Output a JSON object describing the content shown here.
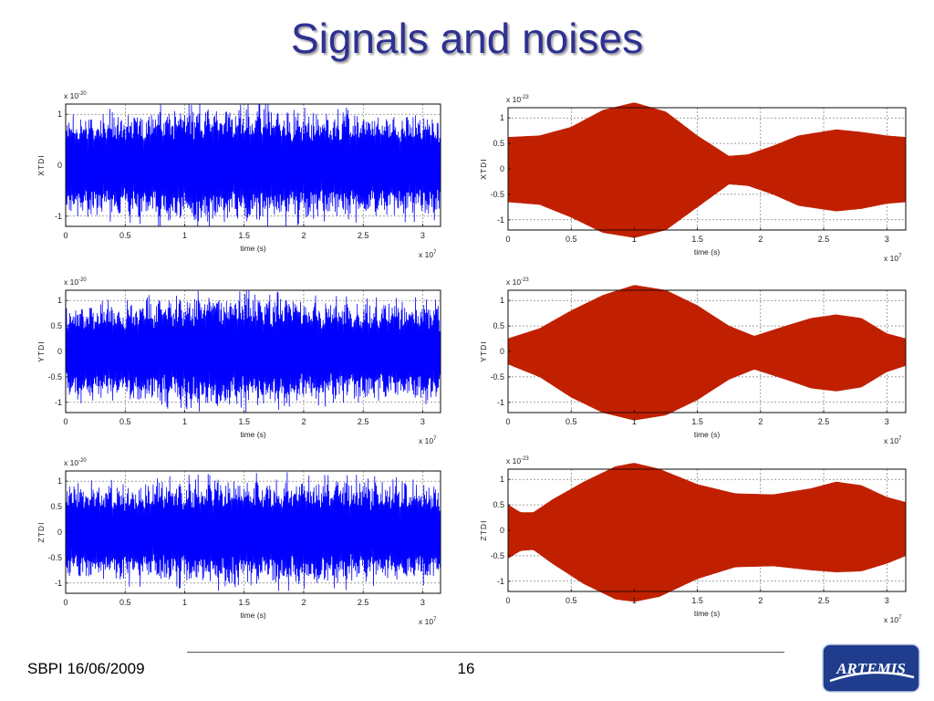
{
  "slide": {
    "title": "Signals and noises",
    "footer_left": "SBPI 16/06/2009",
    "page_number": "16"
  },
  "logo": {
    "text": "ARTEMIS",
    "icon": "artemis-logo",
    "color": "#1f3d8c"
  },
  "colors": {
    "title": "#2e3192",
    "noise": "#0000ff",
    "signal": "#c02000"
  },
  "chart_data": [
    {
      "type": "line",
      "position": "top-left",
      "color": "#0000ff",
      "ylabel": "XTDI",
      "xlabel": "time (s)",
      "y_exponent": "x 10-20",
      "x_exponent": "x 107",
      "xlim": [
        0,
        3.15
      ],
      "ylim": [
        -1.2,
        1.2
      ],
      "xticks": [
        0,
        0.5,
        1,
        1.5,
        2,
        2.5,
        3
      ],
      "xtick_labels": [
        "0",
        "0.5",
        "1",
        "1.5",
        "2",
        "2.5",
        "3"
      ],
      "yticks": [
        1,
        0,
        -1
      ],
      "ytick_labels": [
        "1",
        "0",
        "-1"
      ],
      "envelope": {
        "x": [
          0,
          0.5,
          1,
          1.5,
          2,
          2.5,
          3,
          3.15
        ],
        "upper": [
          0.95,
          1.0,
          1.15,
          1.15,
          1.05,
          1.0,
          1.0,
          0.95
        ],
        "lower": [
          -0.95,
          -1.0,
          -1.15,
          -1.15,
          -1.05,
          -1.0,
          -1.0,
          -0.95
        ]
      }
    },
    {
      "type": "area",
      "position": "top-right",
      "color": "#c02000",
      "ylabel": "XTDI",
      "xlabel": "time (s)",
      "y_exponent": "x 10-23",
      "x_exponent": "x 107",
      "xlim": [
        0,
        3.15
      ],
      "ylim": [
        -1.2,
        1.2
      ],
      "xticks": [
        0,
        0.5,
        1,
        1.5,
        2,
        2.5,
        3
      ],
      "xtick_labels": [
        "0",
        "0.5",
        "1",
        "1.5",
        "2",
        "2.5",
        "3"
      ],
      "yticks": [
        1,
        0.5,
        0,
        -0.5,
        -1
      ],
      "ytick_labels": [
        "1",
        "0.5",
        "0",
        "-0.5",
        "-1"
      ],
      "envelope": {
        "x": [
          0,
          0.25,
          0.5,
          0.75,
          1.0,
          1.25,
          1.5,
          1.75,
          1.9,
          2.1,
          2.3,
          2.6,
          2.8,
          3.0,
          3.15
        ],
        "upper": [
          0.62,
          0.65,
          0.82,
          1.15,
          1.3,
          1.12,
          0.65,
          0.25,
          0.28,
          0.45,
          0.65,
          0.77,
          0.72,
          0.65,
          0.62
        ],
        "lower": [
          -0.65,
          -0.7,
          -0.95,
          -1.25,
          -1.35,
          -1.2,
          -0.75,
          -0.3,
          -0.33,
          -0.5,
          -0.72,
          -0.83,
          -0.78,
          -0.68,
          -0.65
        ]
      }
    },
    {
      "type": "line",
      "position": "middle-left",
      "color": "#0000ff",
      "ylabel": "YTDI",
      "xlabel": "time (s)",
      "y_exponent": "x 10-20",
      "x_exponent": "x 107",
      "xlim": [
        0,
        3.15
      ],
      "ylim": [
        -1.2,
        1.2
      ],
      "xticks": [
        0,
        0.5,
        1,
        1.5,
        2,
        2.5,
        3
      ],
      "xtick_labels": [
        "0",
        "0.5",
        "1",
        "1.5",
        "2",
        "2.5",
        "3"
      ],
      "yticks": [
        1,
        0.5,
        0,
        -0.5,
        -1
      ],
      "ytick_labels": [
        "1",
        "0.5",
        "0",
        "-0.5",
        "-1"
      ],
      "envelope": {
        "x": [
          0,
          0.5,
          1,
          1.5,
          2,
          2.5,
          3,
          3.15
        ],
        "upper": [
          0.9,
          0.95,
          1.05,
          1.1,
          1.0,
          0.95,
          0.95,
          0.9
        ],
        "lower": [
          -0.9,
          -0.95,
          -1.05,
          -1.1,
          -1.0,
          -0.95,
          -0.95,
          -0.9
        ]
      }
    },
    {
      "type": "area",
      "position": "middle-right",
      "color": "#c02000",
      "ylabel": "YTDI",
      "xlabel": "time (s)",
      "y_exponent": "x 10-23",
      "x_exponent": "x 107",
      "xlim": [
        0,
        3.15
      ],
      "ylim": [
        -1.2,
        1.2
      ],
      "xticks": [
        0,
        0.5,
        1,
        1.5,
        2,
        2.5,
        3
      ],
      "xtick_labels": [
        "0",
        "0.5",
        "1",
        "1.5",
        "2",
        "2.5",
        "3"
      ],
      "yticks": [
        1,
        0.5,
        0,
        -0.5,
        -1
      ],
      "ytick_labels": [
        "1",
        "0.5",
        "0",
        "-0.5",
        "-1"
      ],
      "envelope": {
        "x": [
          0,
          0.25,
          0.5,
          0.75,
          1.0,
          1.25,
          1.5,
          1.75,
          1.95,
          2.2,
          2.4,
          2.6,
          2.8,
          3.0,
          3.15
        ],
        "upper": [
          0.25,
          0.45,
          0.8,
          1.1,
          1.3,
          1.2,
          0.9,
          0.5,
          0.3,
          0.5,
          0.65,
          0.72,
          0.65,
          0.35,
          0.25
        ],
        "lower": [
          -0.25,
          -0.5,
          -0.9,
          -1.2,
          -1.35,
          -1.25,
          -0.95,
          -0.55,
          -0.35,
          -0.55,
          -0.72,
          -0.78,
          -0.7,
          -0.4,
          -0.28
        ]
      }
    },
    {
      "type": "line",
      "position": "bottom-left",
      "color": "#0000ff",
      "ylabel": "ZTDI",
      "xlabel": "time (s)",
      "y_exponent": "x 10-20",
      "x_exponent": "x 107",
      "xlim": [
        0,
        3.15
      ],
      "ylim": [
        -1.2,
        1.2
      ],
      "xticks": [
        0,
        0.5,
        1,
        1.5,
        2,
        2.5,
        3
      ],
      "xtick_labels": [
        "0",
        "0.5",
        "1",
        "1.5",
        "2",
        "2.5",
        "3"
      ],
      "yticks": [
        1,
        0.5,
        0,
        -0.5,
        -1
      ],
      "ytick_labels": [
        "1",
        "0.5",
        "0",
        "-0.5",
        "-1"
      ],
      "envelope": {
        "x": [
          0,
          0.5,
          1,
          1.5,
          2,
          2.5,
          3,
          3.15
        ],
        "upper": [
          0.9,
          0.95,
          1.0,
          1.05,
          1.05,
          1.0,
          0.95,
          0.9
        ],
        "lower": [
          -0.9,
          -0.95,
          -1.0,
          -1.05,
          -1.05,
          -1.0,
          -0.95,
          -0.9
        ]
      }
    },
    {
      "type": "area",
      "position": "bottom-right",
      "color": "#c02000",
      "ylabel": "ZTDI",
      "xlabel": "time (s)",
      "y_exponent": "x 10-23",
      "x_exponent": "x 107",
      "xlim": [
        0,
        3.15
      ],
      "ylim": [
        -1.2,
        1.2
      ],
      "xticks": [
        0,
        0.5,
        1,
        1.5,
        2,
        2.5,
        3
      ],
      "xtick_labels": [
        "0",
        "0.5",
        "1",
        "1.5",
        "2",
        "2.5",
        "3"
      ],
      "yticks": [
        1,
        0.5,
        0,
        -0.5,
        -1
      ],
      "ytick_labels": [
        "1",
        "0.5",
        "0",
        "-0.5",
        "-1"
      ],
      "envelope": {
        "x": [
          0,
          0.1,
          0.2,
          0.35,
          0.6,
          0.85,
          1.0,
          1.2,
          1.5,
          1.8,
          2.1,
          2.4,
          2.6,
          2.8,
          3.0,
          3.15
        ],
        "upper": [
          0.5,
          0.35,
          0.35,
          0.6,
          0.95,
          1.25,
          1.32,
          1.2,
          0.9,
          0.72,
          0.7,
          0.82,
          0.95,
          0.88,
          0.65,
          0.55
        ],
        "lower": [
          -0.55,
          -0.4,
          -0.38,
          -0.65,
          -1.05,
          -1.35,
          -1.4,
          -1.3,
          -0.95,
          -0.72,
          -0.7,
          -0.78,
          -0.82,
          -0.8,
          -0.65,
          -0.5
        ]
      }
    }
  ]
}
